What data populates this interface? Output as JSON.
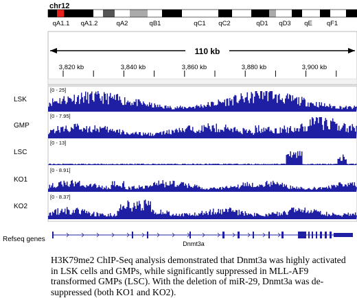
{
  "chromosome": {
    "name": "chr12",
    "bands": [
      "qA1.1",
      "qA1.2",
      "qA2",
      "qB1",
      "qC1",
      "qC2",
      "qD1",
      "qD3",
      "qE",
      "qF1"
    ]
  },
  "ruler": {
    "span_label": "110 kb",
    "ticks": [
      "3,820 kb",
      "3,840 kb",
      "3,860 kb",
      "3,880 kb",
      "3,900 kb"
    ]
  },
  "tracks": [
    {
      "name": "LSK",
      "range": "[0 - 25]"
    },
    {
      "name": "GMP",
      "range": "[0 - 7.95]"
    },
    {
      "name": "LSC",
      "range": "[0 - 13]"
    },
    {
      "name": "KO1",
      "range": "[0 - 8.91]"
    },
    {
      "name": "KO2",
      "range": "[0 - 8.37]"
    }
  ],
  "gene_track": {
    "label": "Refseq genes",
    "gene": "Dnmt3a"
  },
  "colors": {
    "signal": "#1f1fa3",
    "current_band": "#e8211d"
  },
  "caption": "H3K79me2 ChIP-Seq analysis demonstrated that Dnmt3a was highly activated in LSK cells and GMPs, while significantly suppressed in MLL-AF9 transformed GMPs (LSC). With the deletion of miR-29, Dnmt3a was de-suppressed (both KO1 and KO2)."
}
